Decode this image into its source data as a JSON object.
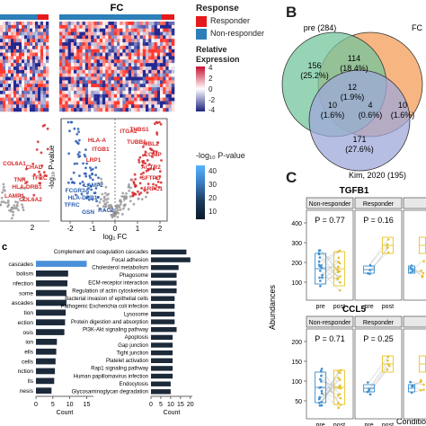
{
  "panel_labels": {
    "b": "B",
    "c": "C"
  },
  "heatmap": {
    "fc_title": "FC",
    "legend": {
      "response_title": "Response",
      "responder": "Responder",
      "non_responder": "Non-responder",
      "expr_title_1": "Relative",
      "expr_title_2": "Expression",
      "expr_ticks": [
        "4",
        "2",
        "0",
        "-2",
        "-4"
      ],
      "colors": {
        "responder": "#e41a1c",
        "non_responder": "#2c7fb8",
        "high": "#c8102e",
        "low": "#1a237e"
      }
    }
  },
  "volcano": {
    "ylabel": "-log₁₀ P-value",
    "xlabel": "log₂ FC",
    "legend_title": "-log₁₀ P-value",
    "legend_ticks": [
      "40",
      "30",
      "20",
      "10"
    ],
    "left_x_ticks": [
      "2"
    ],
    "right_x_ticks": [
      "-2",
      "-1",
      "0",
      "1",
      "2"
    ],
    "left_labels": [
      "COL6A1",
      "CHAD",
      "TNR",
      "TFRC",
      "HLA-DRB1",
      "LAMP1",
      "COL6A2"
    ],
    "right_up_labels": [
      "ITGA2",
      "THBS1",
      "TUBB1",
      "MBL2",
      "COMP",
      "HLA-A",
      "ITGB1",
      "LRP1",
      "ACTR2",
      "SFTPD",
      "ARPC1"
    ],
    "right_down_labels": [
      "FCGR3A",
      "LAMP2",
      "HLA-DPB1",
      "TFRC",
      "GSN",
      "RAC2"
    ]
  },
  "pathway_left": {
    "panel_letter": "c",
    "terms": [
      "cascades",
      "bolism",
      "nfection",
      "some",
      "ascades",
      "tion",
      "ection",
      "osis",
      "ion",
      "ells",
      "cells",
      "nction",
      "lls",
      "nesis"
    ],
    "ticks": [
      "0",
      "5",
      "10",
      "15"
    ],
    "xlabel": "Count"
  },
  "pathway_right": {
    "terms": [
      "Complement and coagulation cascades",
      "Focal adhesion",
      "Cholesterol metabolism",
      "Phagosome",
      "ECM-receptor interaction",
      "Regulation of actin cytoskeleton",
      "Bacterial invasion of epithelial cells",
      "Pathogenic Escherichia coli infection",
      "Lysosome",
      "Protein digestion and absorption",
      "PI3K-Akt signaling pathway",
      "Apoptosis",
      "Gap junction",
      "Tight junction",
      "Platelet activation",
      "Rap1 signaling pathway",
      "Human papillomavirus infection",
      "Endocytosis",
      "Glycosaminoglycan degradation"
    ],
    "ticks": [
      "0",
      "5",
      "10",
      "15",
      "20"
    ],
    "xlabel": "Count"
  },
  "venn": {
    "sets": [
      {
        "label": "pre (284)",
        "color": "#74c69d"
      },
      {
        "label": "FC",
        "color": "#f4a261"
      },
      {
        "label": "Kim, 2020 (195)",
        "color": "#9fa8da"
      }
    ],
    "regions": [
      {
        "count": "156",
        "pct": "(25.2%)"
      },
      {
        "count": "114",
        "pct": "(18.4%)"
      },
      {
        "count": "12",
        "pct": "(1.9%)"
      },
      {
        "count": "10",
        "pct": "(1.6%)"
      },
      {
        "count": "4",
        "pct": "(0.6%)"
      },
      {
        "count": "10",
        "pct": "(1.6%)"
      },
      {
        "count": "171",
        "pct": "(27.6%)"
      }
    ]
  },
  "boxplots": {
    "ylabel": "Abundances",
    "xlabel_cut": "Conditio",
    "x_categories": [
      "pre",
      "post"
    ],
    "genes": [
      {
        "title": "TGFB1",
        "facets": [
          {
            "label": "Non-responder",
            "p": "P = 0.77"
          },
          {
            "label": "Responder",
            "p": "P = 0.16"
          }
        ],
        "yticks": [
          "400",
          "300",
          "200",
          "100"
        ]
      },
      {
        "title": "CCL5",
        "facets": [
          {
            "label": "Non-responder",
            "p": "P = 0.71"
          },
          {
            "label": "Responder",
            "p": "P = 0.25"
          }
        ],
        "yticks": [
          "200",
          "150",
          "100",
          "50"
        ]
      }
    ],
    "colors": {
      "pre": "#3a8fd1",
      "post": "#e6c229"
    }
  },
  "chart_data": [
    {
      "type": "bar",
      "title": "",
      "xlabel": "Count",
      "orientation": "horizontal",
      "categories": [
        "cascades",
        "bolism",
        "nfection",
        "some",
        "ascades",
        "tion",
        "ection",
        "osis",
        "ion",
        "ells",
        "cells",
        "nction",
        "lls",
        "nesis"
      ],
      "values": [
        15,
        9.5,
        9.3,
        9,
        9,
        8.8,
        8.6,
        8.4,
        6.2,
        6,
        5.8,
        5.6,
        5.4,
        4.6
      ],
      "xlim": [
        0,
        17
      ]
    },
    {
      "type": "bar",
      "title": "",
      "xlabel": "Count",
      "orientation": "horizontal",
      "categories": [
        "Complement and coagulation cascades",
        "Focal adhesion",
        "Cholesterol metabolism",
        "Phagosome",
        "ECM-receptor interaction",
        "Regulation of actin cytoskeleton",
        "Bacterial invasion of epithelial cells",
        "Pathogenic Escherichia coli infection",
        "Lysosome",
        "Protein digestion and absorption",
        "PI3K-Akt signaling pathway",
        "Apoptosis",
        "Gap junction",
        "Tight junction",
        "Platelet activation",
        "Rap1 signaling pathway",
        "Human papillomavirus infection",
        "Endocytosis",
        "Glycosaminoglycan degradation"
      ],
      "values": [
        18,
        20,
        14,
        13,
        13,
        13,
        12,
        12,
        12,
        12,
        13,
        11,
        11,
        11,
        11,
        11,
        11,
        10,
        10
      ],
      "xlim": [
        0,
        21
      ]
    }
  ]
}
